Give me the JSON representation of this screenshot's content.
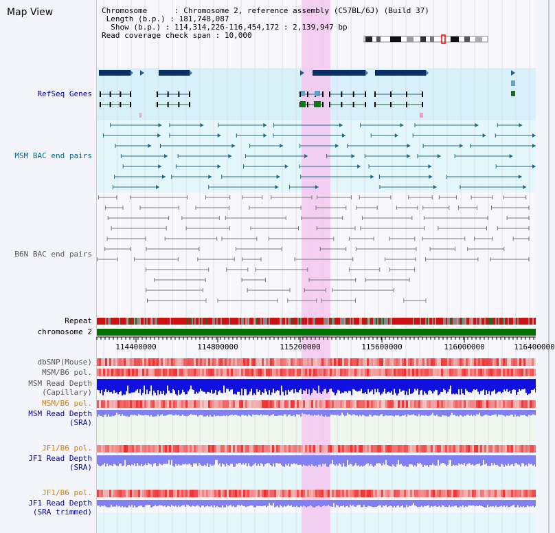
{
  "header": {
    "title": "Map View",
    "chromosome_key": "Chromosome",
    "chromosome_value": "Chromosome 2, reference assembly (C57BL/6J) (Build 37)",
    "length_key": "Length (b.p.)",
    "length_value": "181,748,087",
    "show_key": "Show (b.p.)",
    "show_value": "114,314,226-116,454,172 : 2,139,947 bp",
    "coverage_key": "Read coverage check span",
    "coverage_value": "10,000"
  },
  "tracks": {
    "refseq": "RefSeq Genes",
    "msm_bac": "MSM BAC end pairs",
    "b6n_bac": "B6N BAC end pairs",
    "repeat": "Repeat",
    "chromosome": "chromosome 2",
    "dbsnp": "dbSNP(Mouse)",
    "msm_b6_pol_1": "MSM/B6 pol.",
    "msm_depth_cap_1": "MSM Read Depth",
    "msm_depth_cap_2": "(Capillary)",
    "msm_b6_pol_2": "MSM/B6 pol.",
    "msm_depth_sra_1": "MSM Read Depth",
    "msm_depth_sra_2": "(SRA)",
    "jf1_b6_pol_1": "JF1/B6 pol.",
    "jf1_depth_sra_1": "JF1 Read Depth",
    "jf1_depth_sra_2": "(SRA)",
    "jf1_b6_pol_2": "JF1/B6 pol.",
    "jf1_depth_trim_1": "JF1 Read Depth",
    "jf1_depth_trim_2": "(SRA trimmed)"
  },
  "axis": {
    "ticks": [
      "114400000",
      "114800000",
      "115200000",
      "115600000",
      "116000000",
      "116400000"
    ]
  },
  "colors": {
    "highlight": "#f5c8f0",
    "refseq_bg": "#d8f0fa",
    "msm_bg": "#e4f8fc",
    "gene_dark": "#0a2f66",
    "msm_line": "#1a6a8a",
    "b6n_line": "#777777",
    "chromosome_bar": "#007000",
    "depth_blue": "#1010e0",
    "depth_light": "#8080f0",
    "pol_red": "#e03030"
  }
}
